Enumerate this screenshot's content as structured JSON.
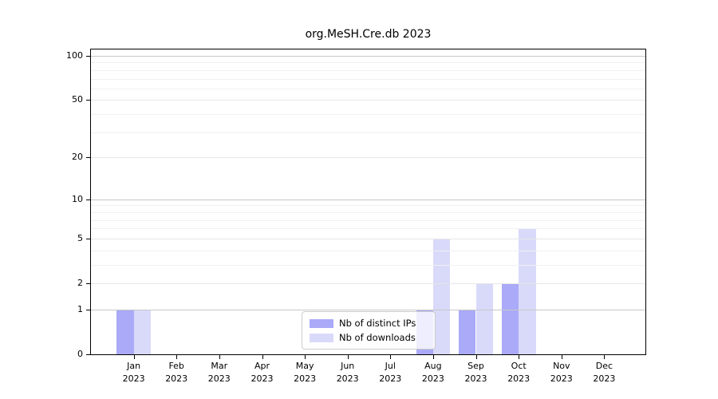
{
  "chart_data": {
    "type": "bar",
    "title": "org.MeSH.Cre.db 2023",
    "categories": [
      "Jan",
      "Feb",
      "Mar",
      "Apr",
      "May",
      "Jun",
      "Jul",
      "Aug",
      "Sep",
      "Oct",
      "Nov",
      "Dec"
    ],
    "category_year": "2023",
    "series": [
      {
        "name": "Nb of distinct IPs",
        "color": "#aaaaf8",
        "values": [
          1,
          0,
          0,
          0,
          0,
          0,
          0,
          1,
          1,
          2,
          0,
          0
        ]
      },
      {
        "name": "Nb of downloads",
        "color": "#d9d9fa",
        "values": [
          1,
          0,
          0,
          0,
          0,
          0,
          0,
          5,
          2,
          6,
          0,
          0
        ]
      }
    ],
    "yscale": "log1p",
    "ylim": [
      0,
      112
    ],
    "yticks": [
      "0",
      "1",
      "2",
      "5",
      "10",
      "20",
      "50",
      "100"
    ],
    "ytick_values": [
      0,
      1,
      2,
      5,
      10,
      20,
      50,
      100
    ],
    "gridlines": {
      "decade": [
        1,
        10,
        100
      ],
      "mid": [
        2,
        5,
        20,
        50
      ],
      "minor": [
        3,
        4,
        6,
        7,
        8,
        9,
        30,
        40,
        60,
        70,
        80,
        90
      ]
    },
    "grid": true,
    "legend_position": "lower center",
    "colors": {
      "axis": "#000000",
      "grid_decade": "#c8c8c8",
      "grid_mid": "#e7e7e7",
      "grid_minor": "#f1f1f1",
      "legend_border": "#cccccc"
    }
  }
}
